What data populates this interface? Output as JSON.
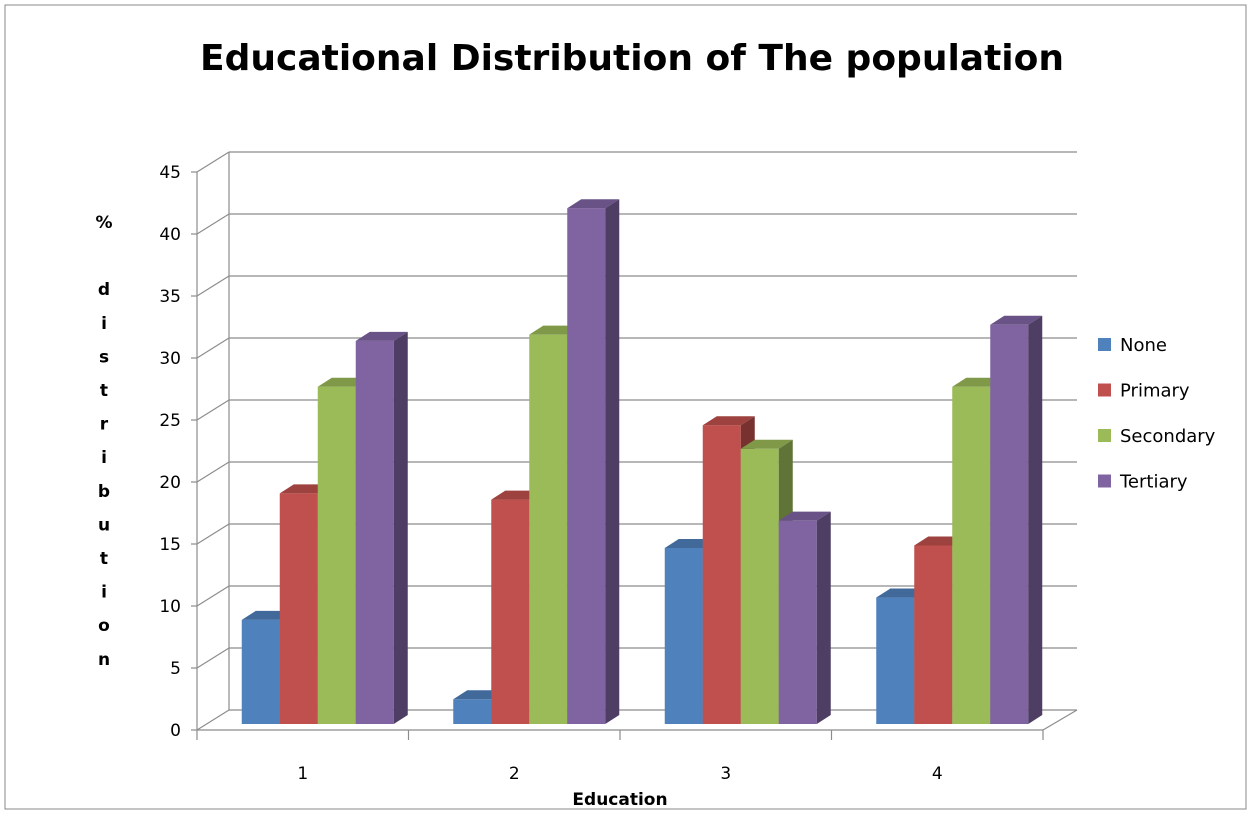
{
  "chart_data": {
    "type": "bar",
    "title": "Educational Distribution of The population",
    "xlabel": "Education",
    "ylabel": "% distribution",
    "ylabel_lines": [
      "%",
      "",
      "d",
      "i",
      "s",
      "t",
      "r",
      "i",
      "b",
      "u",
      "t",
      "i",
      "o",
      "n"
    ],
    "categories": [
      "1",
      "2",
      "3",
      "4"
    ],
    "ylim": [
      0,
      45
    ],
    "yticks": [
      "0",
      "5",
      "10",
      "15",
      "20",
      "25",
      "30",
      "35",
      "40",
      "45"
    ],
    "grid": true,
    "legend_position": "right",
    "series": [
      {
        "name": "None",
        "color": "#4F81BD",
        "values": [
          8.8,
          2.4,
          14.6,
          10.6
        ]
      },
      {
        "name": "Primary",
        "color": "#C0504D",
        "values": [
          19.0,
          18.5,
          24.5,
          14.8
        ]
      },
      {
        "name": "Secondary",
        "color": "#9BBB59",
        "values": [
          27.6,
          31.8,
          22.6,
          27.6
        ]
      },
      {
        "name": "Tertiary",
        "color": "#8064A2",
        "values": [
          31.3,
          42.0,
          16.8,
          32.6
        ]
      }
    ]
  }
}
